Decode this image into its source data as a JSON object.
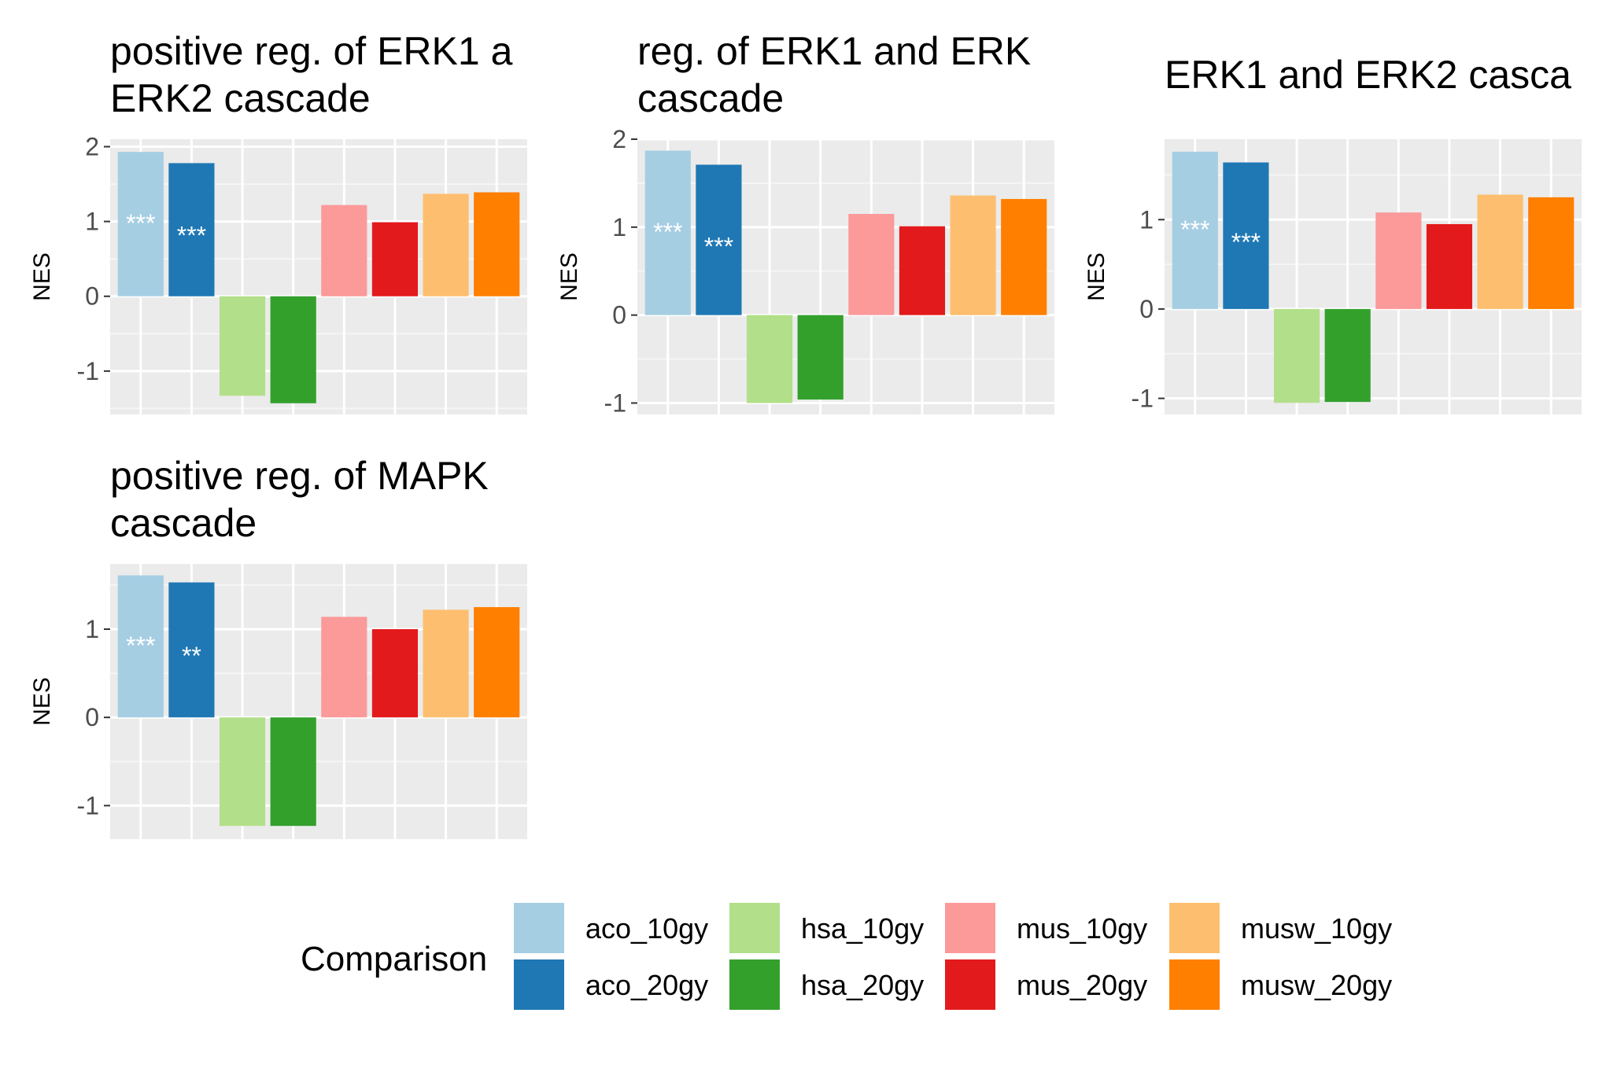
{
  "chart_data": [
    {
      "type": "bar",
      "title": [
        "positive reg. of ERK1 a",
        "ERK2 cascade"
      ],
      "ylabel": "NES",
      "ylim": [
        -1.58,
        2.1
      ],
      "yticks": [
        -1,
        0,
        1,
        2
      ],
      "categories": [
        "aco_10gy",
        "aco_20gy",
        "hsa_10gy",
        "hsa_20gy",
        "mus_10gy",
        "mus_20gy",
        "musw_10gy",
        "musw_20gy"
      ],
      "values": [
        1.93,
        1.78,
        -1.33,
        -1.43,
        1.22,
        0.99,
        1.37,
        1.39
      ],
      "significance": [
        "***",
        "***",
        "",
        "",
        "",
        "",
        "",
        ""
      ]
    },
    {
      "type": "bar",
      "title": [
        "reg. of ERK1 and ERK",
        "cascade"
      ],
      "ylabel": "NES",
      "ylim": [
        -1.13,
        2.0
      ],
      "yticks": [
        -1,
        0,
        1,
        2
      ],
      "categories": [
        "aco_10gy",
        "aco_20gy",
        "hsa_10gy",
        "hsa_20gy",
        "mus_10gy",
        "mus_20gy",
        "musw_10gy",
        "musw_20gy"
      ],
      "values": [
        1.87,
        1.71,
        -1.0,
        -0.96,
        1.15,
        1.01,
        1.36,
        1.32
      ],
      "significance": [
        "***",
        "***",
        "",
        "",
        "",
        "",
        "",
        ""
      ]
    },
    {
      "type": "bar",
      "title": [
        "ERK1 and ERK2 casca"
      ],
      "ylabel": "NES",
      "ylim": [
        -1.18,
        1.9
      ],
      "yticks": [
        -1,
        0,
        1
      ],
      "categories": [
        "aco_10gy",
        "aco_20gy",
        "hsa_10gy",
        "hsa_20gy",
        "mus_10gy",
        "mus_20gy",
        "musw_10gy",
        "musw_20gy"
      ],
      "values": [
        1.76,
        1.64,
        -1.05,
        -1.04,
        1.08,
        0.95,
        1.28,
        1.25
      ],
      "significance": [
        "***",
        "***",
        "",
        "",
        "",
        "",
        "",
        ""
      ]
    },
    {
      "type": "bar",
      "title": [
        "positive reg. of MAPK",
        "cascade"
      ],
      "ylabel": "NES",
      "ylim": [
        -1.38,
        1.74
      ],
      "yticks": [
        -1,
        0,
        1
      ],
      "categories": [
        "aco_10gy",
        "aco_20gy",
        "hsa_10gy",
        "hsa_20gy",
        "mus_10gy",
        "mus_20gy",
        "musw_10gy",
        "musw_20gy"
      ],
      "values": [
        1.61,
        1.53,
        -1.23,
        -1.23,
        1.14,
        1.0,
        1.22,
        1.25
      ],
      "significance": [
        "***",
        "**",
        "",
        "",
        "",
        "",
        "",
        ""
      ]
    }
  ],
  "legend": {
    "title": "Comparison",
    "entries": [
      "aco_10gy",
      "aco_20gy",
      "hsa_10gy",
      "hsa_20gy",
      "mus_10gy",
      "mus_20gy",
      "musw_10gy",
      "musw_20gy"
    ],
    "position": "bottom"
  },
  "colors": {
    "aco_10gy": "#a6cee3",
    "aco_20gy": "#1f78b4",
    "hsa_10gy": "#b2df8a",
    "hsa_20gy": "#33a02c",
    "mus_10gy": "#fb9a99",
    "mus_20gy": "#e31a1c",
    "musw_10gy": "#fdbf6f",
    "musw_20gy": "#ff7f00",
    "panel_background": "#ebebeb",
    "grid": "#ffffff"
  }
}
